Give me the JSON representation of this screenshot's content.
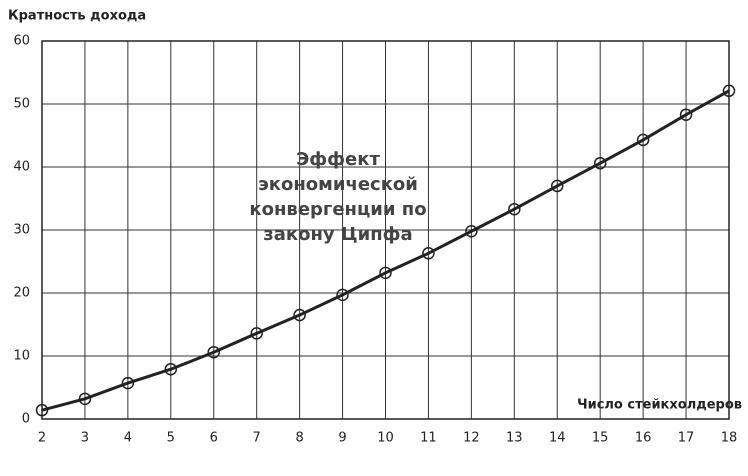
{
  "chart_data": {
    "type": "line",
    "ylabel": "Кратность дохода",
    "xlabel": "Число стейкхолдеров",
    "annotation": [
      "Эффект",
      "экономической",
      "конвергенции по",
      "закону Ципфа"
    ],
    "x": [
      2,
      3,
      4,
      5,
      6,
      7,
      8,
      9,
      10,
      11,
      12,
      13,
      14,
      15,
      16,
      17,
      18
    ],
    "series": [
      {
        "color": "#222222",
        "values": [
          1.4,
          3.2,
          5.7,
          7.9,
          10.6,
          13.6,
          16.5,
          19.7,
          23.2,
          26.3,
          29.8,
          33.3,
          37.0,
          40.6,
          44.3,
          48.3,
          52.1
        ]
      }
    ],
    "xlim": [
      2,
      18
    ],
    "xticks": [
      2,
      3,
      4,
      5,
      6,
      7,
      8,
      9,
      10,
      11,
      12,
      13,
      14,
      15,
      16,
      17,
      18
    ],
    "ylim": [
      0,
      60
    ],
    "yticks": [
      0,
      10,
      20,
      30,
      40,
      50,
      60
    ],
    "grid": true
  }
}
